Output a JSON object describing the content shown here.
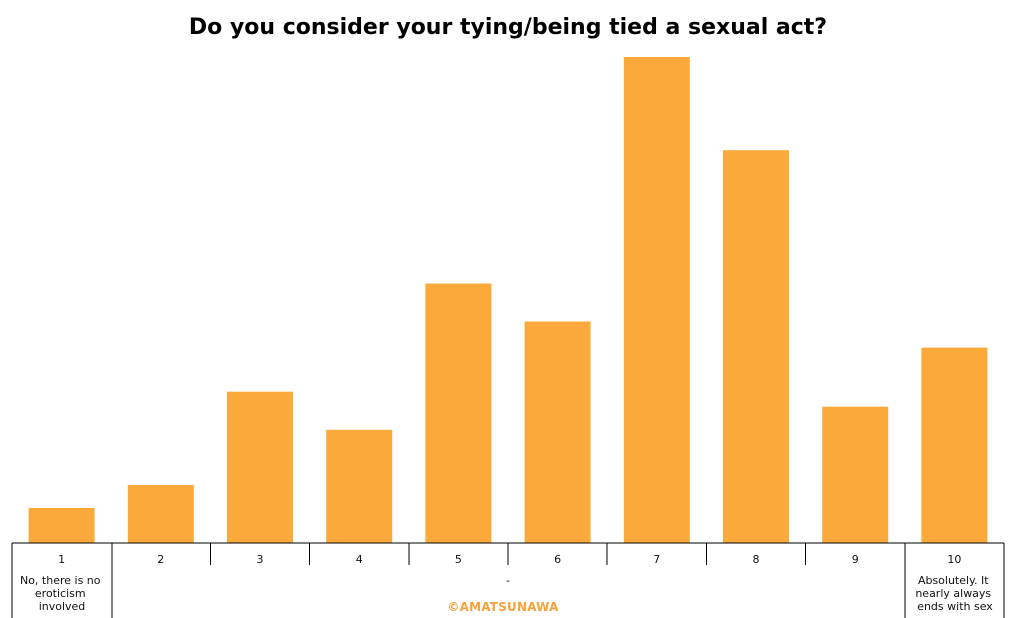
{
  "chart_data": {
    "type": "bar",
    "title": "Do you consider your tying/being tied a sexual act?",
    "categories": [
      "1",
      "2",
      "3",
      "4",
      "5",
      "6",
      "7",
      "8",
      "9",
      "10"
    ],
    "values": [
      35,
      58,
      151,
      113,
      259,
      221,
      485,
      392,
      136,
      195
    ],
    "ylim": [
      0,
      485
    ],
    "grid": false,
    "legend": "none",
    "group_labels": {
      "low": [
        "No, there is no",
        "eroticism",
        "involved"
      ],
      "middle": "-",
      "high": [
        "Absolutely. It",
        "nearly always",
        "ends with sex"
      ]
    }
  },
  "watermark": "©AMATSUNAWA",
  "colors": {
    "bar": "#fca93b",
    "watermark": "#f7a239",
    "axis": "#000000"
  }
}
